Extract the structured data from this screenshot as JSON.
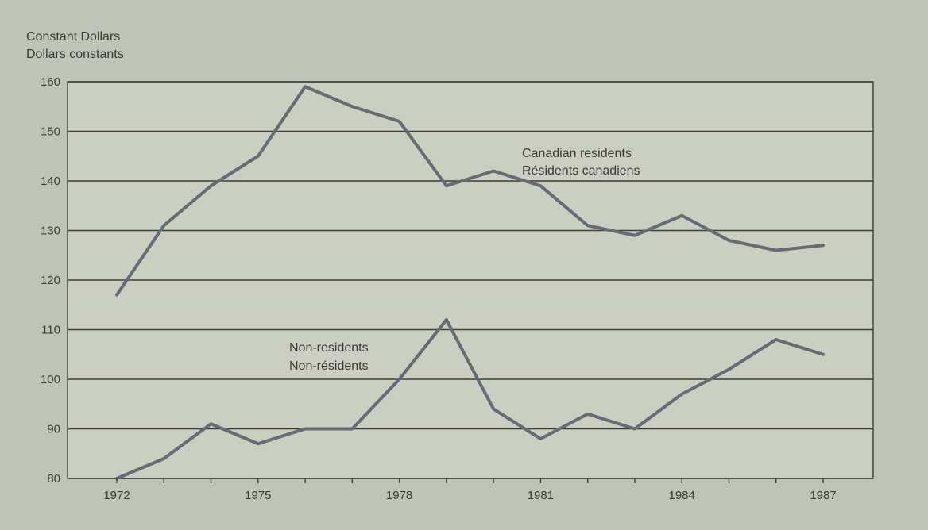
{
  "chart_data": {
    "type": "line",
    "ylabel_en": "Constant Dollars",
    "ylabel_fr": "Dollars constants",
    "x": [
      1972,
      1973,
      1974,
      1975,
      1976,
      1977,
      1978,
      1979,
      1980,
      1981,
      1982,
      1983,
      1984,
      1985,
      1986,
      1987
    ],
    "xticks": [
      "1972",
      "1975",
      "1978",
      "1981",
      "1984",
      "1987"
    ],
    "yticks": [
      "80",
      "90",
      "100",
      "110",
      "120",
      "130",
      "140",
      "150",
      "160"
    ],
    "ylim": [
      80,
      160
    ],
    "xlim": [
      1972,
      1987
    ],
    "grid": "horizontal",
    "series": [
      {
        "name": "Canadian residents",
        "name_fr": "Résidents canadiens",
        "values": [
          117,
          131,
          139,
          145,
          159,
          155,
          152,
          139,
          142,
          139,
          131,
          129,
          133,
          128,
          126,
          127
        ]
      },
      {
        "name": "Non-residents",
        "name_fr": "Non-résidents",
        "values": [
          80,
          84,
          91,
          87,
          90,
          90,
          100,
          112,
          94,
          88,
          93,
          90,
          97,
          102,
          108,
          105
        ]
      }
    ],
    "colors": {
      "background": "#bfc5b6",
      "plot": "#cacfc1",
      "line": "#676b73",
      "grid": "#3e3e3e"
    }
  }
}
